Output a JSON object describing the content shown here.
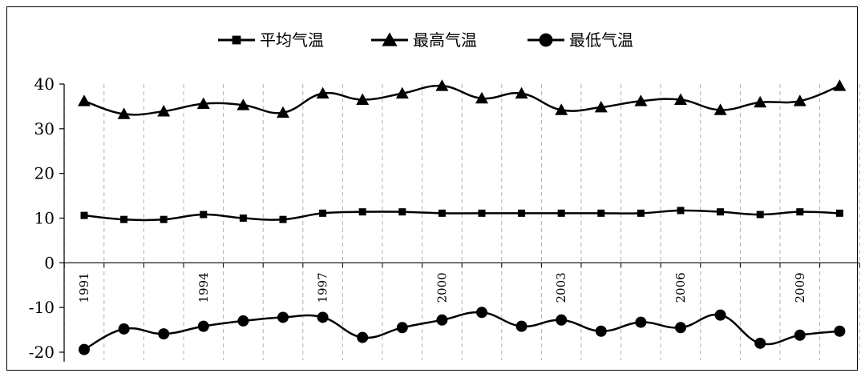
{
  "chart_data": {
    "type": "line",
    "title": "",
    "xlabel": "",
    "ylabel": "",
    "x": [
      1991,
      1992,
      1993,
      1994,
      1995,
      1996,
      1997,
      1998,
      1999,
      2000,
      2001,
      2002,
      2003,
      2004,
      2005,
      2006,
      2007,
      2008,
      2009,
      2010
    ],
    "x_tick_labels": [
      "1991",
      "1994",
      "1997",
      "2000",
      "2003",
      "2006",
      "2009"
    ],
    "x_tick_values": [
      1991,
      1994,
      1997,
      2000,
      2003,
      2006,
      2009
    ],
    "y_ticks": [
      -20,
      -10,
      0,
      10,
      20,
      30,
      40
    ],
    "y_tick_labels": [
      "-20",
      "-10",
      "0",
      "10",
      "20",
      "30",
      "40"
    ],
    "ylim": [
      -20,
      40
    ],
    "grid": "vertical dashed",
    "legend_position": "top-center",
    "series": [
      {
        "name": "平均气温",
        "marker": "square",
        "color": "#000000",
        "values": [
          10.6,
          9.7,
          9.7,
          10.8,
          10.0,
          9.7,
          11.1,
          11.4,
          11.4,
          11.1,
          11.1,
          11.1,
          11.1,
          11.1,
          11.1,
          11.7,
          11.4,
          10.8,
          11.4,
          11.1
        ]
      },
      {
        "name": "最高气温",
        "marker": "triangle",
        "color": "#000000",
        "values": [
          36.2,
          33.3,
          33.9,
          35.6,
          35.3,
          33.6,
          37.9,
          36.5,
          37.9,
          39.6,
          36.8,
          37.9,
          34.2,
          34.8,
          36.2,
          36.5,
          34.2,
          35.9,
          36.2,
          39.6
        ]
      },
      {
        "name": "最低气温",
        "marker": "circle",
        "color": "#000000",
        "values": [
          -19.4,
          -14.8,
          -15.9,
          -14.2,
          -13.0,
          -12.2,
          -12.2,
          -16.7,
          -14.5,
          -12.8,
          -11.1,
          -14.2,
          -12.8,
          -15.3,
          -13.3,
          -14.5,
          -11.7,
          -18.0,
          -16.2,
          -15.3
        ]
      }
    ]
  }
}
